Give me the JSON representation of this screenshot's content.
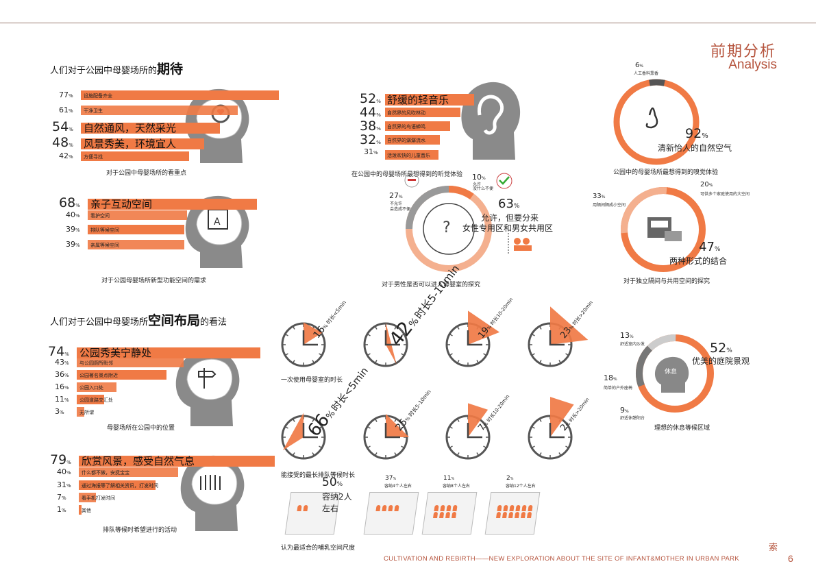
{
  "header": {
    "title_cn": "前期分析",
    "title_en": "Analysis"
  },
  "sections": {
    "expect": {
      "prefix": "人们对于公园中母婴场所的",
      "emph": "期待"
    },
    "layout": {
      "prefix": "人们对于公园中母婴场所",
      "emph": "空间布局",
      "suffix": "的看法"
    }
  },
  "focus": {
    "caption": "对于公园中母婴场所的看重点",
    "items": [
      {
        "pct": "77",
        "label": "设施配备齐全"
      },
      {
        "pct": "61",
        "label": "干净卫生"
      },
      {
        "pct": "54",
        "label": "自然通风，天然采光"
      },
      {
        "pct": "48",
        "label": "风景秀美，环境宜人"
      },
      {
        "pct": "42",
        "label": "方便寻找"
      }
    ]
  },
  "function": {
    "caption": "对于公园母婴场所新型功能空间的需求",
    "items": [
      {
        "pct": "68",
        "label": "亲子互动空间"
      },
      {
        "pct": "40",
        "label": "看护空间"
      },
      {
        "pct": "39",
        "label": "排队等候空间"
      },
      {
        "pct": "39",
        "label": "亲属等候空间"
      }
    ]
  },
  "location": {
    "caption": "母婴场所在公园中的位置",
    "items": [
      {
        "pct": "74",
        "label": "公园秀美宁静处"
      },
      {
        "pct": "43",
        "label": "与公园厕所毗邻"
      },
      {
        "pct": "36",
        "label": "公园著名景点附近"
      },
      {
        "pct": "16",
        "label": "公园入口处"
      },
      {
        "pct": "11",
        "label": "公园道路交汇处"
      },
      {
        "pct": "3",
        "label": "无所谓"
      }
    ]
  },
  "waiting": {
    "caption": "排队等候时希望进行的活动",
    "items": [
      {
        "pct": "79",
        "label": "欣赏风景，感受自然气息"
      },
      {
        "pct": "40",
        "label": "什么都不做，安抚宝宝"
      },
      {
        "pct": "31",
        "label": "通过海报等了解相关资讯，打发时间"
      },
      {
        "pct": "7",
        "label": "看手机打发时间"
      },
      {
        "pct": "1",
        "label": "其他"
      }
    ]
  },
  "hearing": {
    "caption": "在公园中的母婴场所最想得到的听觉体验",
    "items": [
      {
        "pct": "52",
        "label": "舒缓的轻音乐"
      },
      {
        "pct": "44",
        "label": "自然界的风吹林动"
      },
      {
        "pct": "38",
        "label": "自然界的鸟语蝉鸣"
      },
      {
        "pct": "32",
        "label": "自然界的潺潺流水"
      },
      {
        "pct": "31",
        "label": "活泼欢快的儿童音乐"
      }
    ]
  },
  "smell": {
    "caption": "公园中的母婴场所最想得到的嗅觉体验",
    "a_pct": "6",
    "a_label": "人工香料熏香",
    "b_pct": "92",
    "b_label": "清新怡人的自然空气"
  },
  "male": {
    "caption": "对于男性是否可以进入母婴室的探究",
    "a_pct": "27",
    "a_label1": "不允许",
    "a_label2": "会造成不便",
    "b_pct": "10",
    "b_label1": "允许",
    "b_label2": "没什么不便",
    "c_pct": "63",
    "c_label1": "允许，但要分来",
    "c_label2": "女性专用区和男女共用区"
  },
  "separate": {
    "caption": "对于独立隔间与共用空间的探究",
    "a_pct": "33",
    "a_label": "用隔间隔成小空间",
    "b_pct": "20",
    "b_label": "可供多个家庭使用的大空间",
    "c_pct": "47",
    "c_label": "两种形式的结合"
  },
  "rest": {
    "caption": "理想的休息等候区域",
    "center": "休息",
    "a_pct": "13",
    "a_label": "舒适室内沙发",
    "b_pct": "52",
    "b_label": "优美的庭院景观",
    "c_pct": "18",
    "c_label": "简单的户外座椅",
    "d_pct": "9",
    "d_label": "舒适休憩阳台"
  },
  "use_time": {
    "caption": "一次使用母婴室的时长",
    "items": [
      {
        "pct": "16",
        "label": "时长<5min"
      },
      {
        "pct": "42",
        "label": "时长5-10min"
      },
      {
        "pct": "19",
        "label": "时长10-20min"
      },
      {
        "pct": "23",
        "label": "时长>20min"
      }
    ]
  },
  "queue_time": {
    "caption": "能接受的最长排队等候时长",
    "items": [
      {
        "pct": "66",
        "label": "时长<5min"
      },
      {
        "pct": "25",
        "label": "时长5-10min"
      },
      {
        "pct": "7",
        "label": "时长10-20min"
      },
      {
        "pct": "2",
        "label": "时长>20min"
      }
    ]
  },
  "room": {
    "caption": "认为最适合的哺乳空间尺度",
    "items": [
      {
        "pct": "50",
        "label": "容纳2人左右"
      },
      {
        "pct": "37",
        "label": "容纳4个人左右"
      },
      {
        "pct": "11",
        "label": "容纳8个人左右"
      },
      {
        "pct": "2",
        "label": "容纳12个人左右"
      }
    ]
  },
  "pct_sign": "%",
  "footer": {
    "text": "CULTIVATION AND REBIRTH——NEW EXPLORATION ABOUT THE SITE OF INFANT&MOTHER IN URBAN PARK",
    "page": "6",
    "mark": "索"
  },
  "colors": {
    "accent": "#f07a45",
    "light": "#f4b08f",
    "grey": "#999999",
    "dark": "#555555",
    "brand": "#b5533c"
  }
}
